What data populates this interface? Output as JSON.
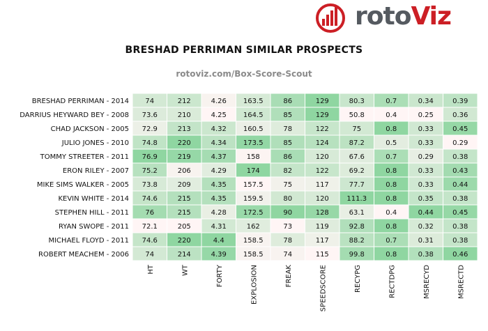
{
  "logo": {
    "text_main": "roto",
    "text_accent": "Viz"
  },
  "chart_data": {
    "type": "heatmap",
    "title": "BRESHAD PERRIMAN SIMILAR PROSPECTS",
    "subtitle": "rotoviz.com/Box-Score-Scout",
    "columns": [
      "HT",
      "WT",
      "FORTY",
      "EXPLOSION",
      "FREAK",
      "SPEEDSCORE",
      "RECYPG",
      "RECTDPG",
      "MSRECYD",
      "MSRECTD"
    ],
    "rows": [
      "BRESHAD PERRIMAN - 2014",
      "DARRIUS HEYWARD BEY - 2008",
      "CHAD JACKSON - 2005",
      "JULIO JONES - 2010",
      "TOMMY STREETER - 2011",
      "ERON RILEY - 2007",
      "MIKE SIMS WALKER - 2005",
      "KEVIN WHITE - 2014",
      "STEPHEN HILL - 2011",
      "RYAN SWOPE - 2011",
      "MICHAEL FLOYD - 2011",
      "ROBERT MEACHEM - 2006"
    ],
    "values": [
      [
        "74",
        "212",
        "4.26",
        "163.5",
        "86",
        "129",
        "80.3",
        "0.7",
        "0.34",
        "0.39"
      ],
      [
        "73.6",
        "210",
        "4.25",
        "164.5",
        "85",
        "129",
        "50.8",
        "0.4",
        "0.25",
        "0.36"
      ],
      [
        "72.9",
        "213",
        "4.32",
        "160.5",
        "78",
        "122",
        "75",
        "0.8",
        "0.33",
        "0.45"
      ],
      [
        "74.8",
        "220",
        "4.34",
        "173.5",
        "85",
        "124",
        "87.2",
        "0.5",
        "0.33",
        "0.29"
      ],
      [
        "76.9",
        "219",
        "4.37",
        "158",
        "86",
        "120",
        "67.6",
        "0.7",
        "0.29",
        "0.38"
      ],
      [
        "75.2",
        "206",
        "4.29",
        "174",
        "82",
        "122",
        "69.2",
        "0.8",
        "0.33",
        "0.43"
      ],
      [
        "73.8",
        "209",
        "4.35",
        "157.5",
        "75",
        "117",
        "77.7",
        "0.8",
        "0.33",
        "0.44"
      ],
      [
        "74.6",
        "215",
        "4.35",
        "159.5",
        "80",
        "120",
        "111.3",
        "0.8",
        "0.35",
        "0.38"
      ],
      [
        "76",
        "215",
        "4.28",
        "172.5",
        "90",
        "128",
        "63.1",
        "0.4",
        "0.44",
        "0.45"
      ],
      [
        "72.1",
        "205",
        "4.31",
        "162",
        "73",
        "119",
        "92.8",
        "0.8",
        "0.32",
        "0.38"
      ],
      [
        "74.6",
        "220",
        "4.4",
        "158.5",
        "78",
        "117",
        "88.2",
        "0.7",
        "0.31",
        "0.38"
      ],
      [
        "74",
        "214",
        "4.39",
        "158.5",
        "74",
        "115",
        "99.8",
        "0.8",
        "0.38",
        "0.46"
      ]
    ],
    "colors": {
      "low": "#fff5f5",
      "high": "#8fd6a1",
      "border": "#ffffff"
    }
  }
}
